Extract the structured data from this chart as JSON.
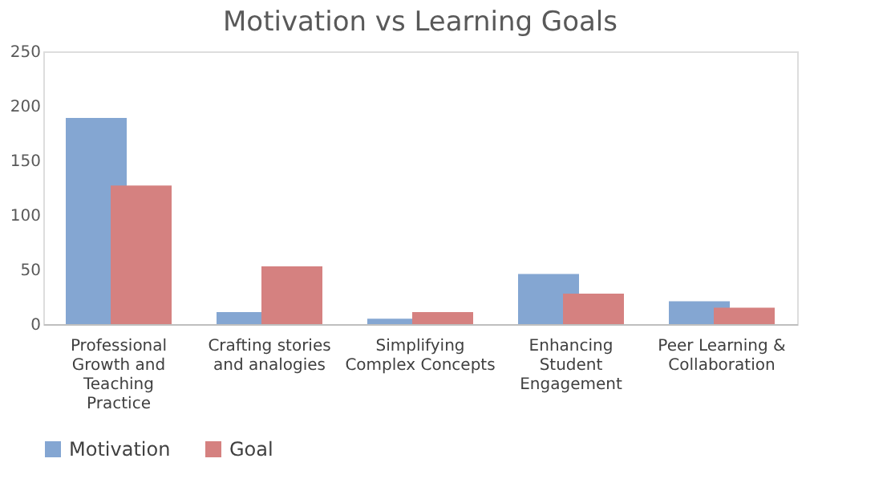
{
  "chart_data": {
    "type": "bar",
    "title": "Motivation vs Learning Goals",
    "categories": [
      "Professional Growth and Teaching Practice",
      "Crafting stories and analogies",
      "Simplifying Complex Concepts",
      "Enhancing Student Engagement",
      "Peer Learning & Collaboration"
    ],
    "series": [
      {
        "name": "Motivation",
        "color": "#84a6d2",
        "values": [
          189,
          11,
          5,
          46,
          21
        ]
      },
      {
        "name": "Goal",
        "color": "#d58180",
        "values": [
          127,
          53,
          11,
          28,
          15
        ]
      }
    ],
    "ylim": [
      0,
      250
    ],
    "yticks": [
      0,
      50,
      100,
      150,
      200,
      250
    ],
    "grid": false,
    "legend": "bottom"
  }
}
